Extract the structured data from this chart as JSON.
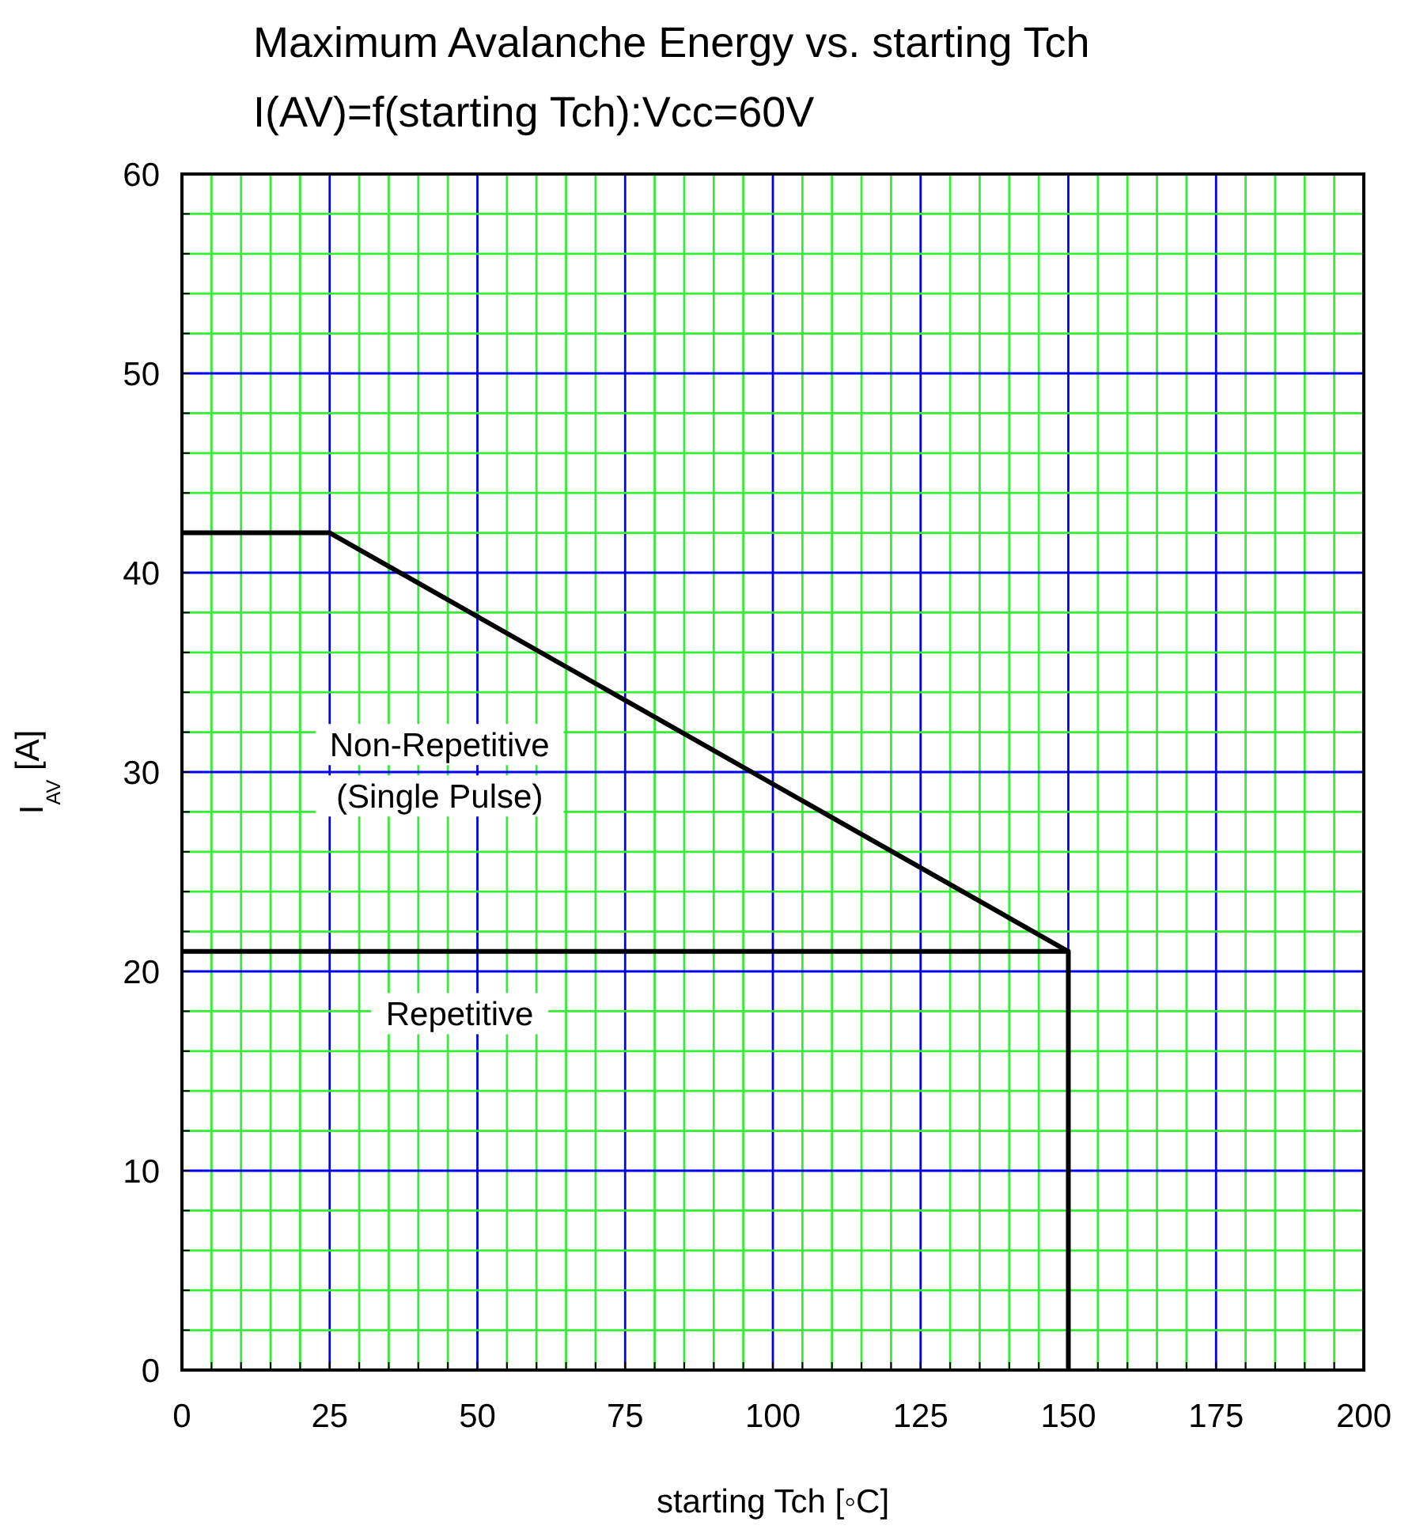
{
  "chart_data": {
    "type": "line",
    "title": "Maximum Avalanche Energy vs. starting Tch",
    "subtitle": "I(AV)=f(starting Tch):Vcc=60V",
    "xlabel": "starting Tch [◦C]",
    "ylabel": "I$_{AV}$ [A]",
    "series": [
      {
        "x": [
          0,
          25,
          150
        ],
        "values": [
          42,
          42,
          21
        ],
        "color": "#000000"
      },
      {
        "x": [
          0,
          150,
          150
        ],
        "values": [
          21,
          21,
          0
        ],
        "color": "#000000"
      }
    ],
    "annotations": [
      "Non-Repetitive",
      "(Single Pulse)",
      "Repetitive"
    ],
    "xlim": [
      0,
      200
    ],
    "xticks": [
      0,
      {
        "value": 5,
        "label": null
      },
      {
        "value": 10,
        "label": null
      },
      {
        "value": 15,
        "label": null
      },
      {
        "value": 20,
        "label": null
      },
      25,
      {
        "value": 30,
        "label": null
      },
      {
        "value": 35,
        "label": null
      },
      {
        "value": 40,
        "label": null
      },
      {
        "value": 45,
        "label": null
      },
      50,
      {
        "value": 55,
        "label": null
      },
      {
        "value": 60,
        "label": null
      },
      {
        "value": 65,
        "label": null
      },
      {
        "value": 70,
        "label": null
      },
      75,
      {
        "value": 80,
        "label": null
      },
      {
        "value": 85,
        "label": null
      },
      {
        "value": 90,
        "label": null
      },
      {
        "value": 95,
        "label": null
      },
      100,
      {
        "value": 105,
        "label": null
      },
      {
        "value": 110,
        "label": null
      },
      {
        "value": 115,
        "label": null
      },
      {
        "value": 120,
        "label": null
      },
      125,
      {
        "value": 130,
        "label": null
      },
      {
        "value": 135,
        "label": null
      },
      {
        "value": 140,
        "label": null
      },
      {
        "value": 145,
        "label": null
      },
      150,
      {
        "value": 155,
        "label": null
      },
      {
        "value": 160,
        "label": null
      },
      {
        "value": 165,
        "label": null
      },
      {
        "value": 170,
        "label": null
      },
      175,
      {
        "value": 180,
        "label": null
      },
      {
        "value": 185,
        "label": null
      },
      {
        "value": 190,
        "label": null
      },
      {
        "value": 195,
        "label": null
      },
      200
    ],
    "ylim": [
      0,
      60
    ],
    "yticks": [
      0,
      {
        "value": 2,
        "label": null
      },
      {
        "value": 4,
        "label": null
      },
      {
        "value": 6,
        "label": null
      },
      {
        "value": 8,
        "label": null
      },
      10,
      {
        "value": 12,
        "label": null
      },
      {
        "value": 14,
        "label": null
      },
      {
        "value": 16,
        "label": null
      },
      {
        "value": 18,
        "label": null
      },
      20,
      {
        "value": 22,
        "label": null
      },
      {
        "value": 24,
        "label": null
      },
      {
        "value": 26,
        "label": null
      },
      {
        "value": 28,
        "label": null
      },
      30,
      {
        "value": 32,
        "label": null
      },
      {
        "value": 34,
        "label": null
      },
      {
        "value": 36,
        "label": null
      },
      {
        "value": 38,
        "label": null
      },
      40,
      {
        "value": 42,
        "label": null
      },
      {
        "value": 44,
        "label": null
      },
      {
        "value": 46,
        "label": null
      },
      {
        "value": 48,
        "label": null
      },
      50,
      {
        "value": 52,
        "label": null
      },
      {
        "value": 54,
        "label": null
      },
      {
        "value": 56,
        "label": null
      },
      {
        "value": 58,
        "label": null
      },
      60
    ],
    "grid": true,
    "marker": "none",
    "line_style": "solid"
  }
}
